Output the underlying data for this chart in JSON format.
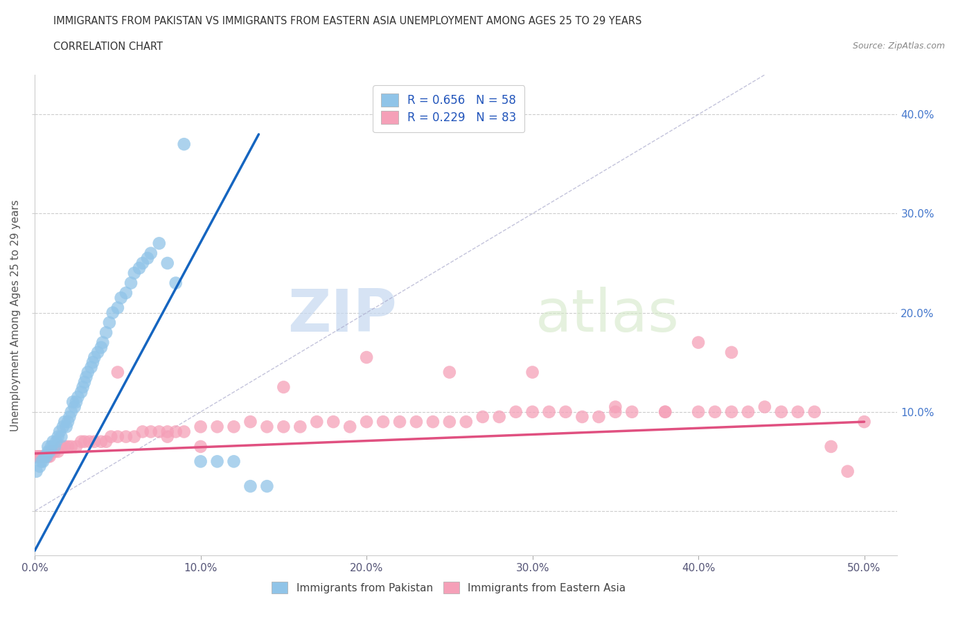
{
  "title_line1": "IMMIGRANTS FROM PAKISTAN VS IMMIGRANTS FROM EASTERN ASIA UNEMPLOYMENT AMONG AGES 25 TO 29 YEARS",
  "title_line2": "CORRELATION CHART",
  "source": "Source: ZipAtlas.com",
  "ylabel": "Unemployment Among Ages 25 to 29 years",
  "xlim": [
    0.0,
    0.52
  ],
  "ylim": [
    -0.045,
    0.44
  ],
  "xticks": [
    0.0,
    0.1,
    0.2,
    0.3,
    0.4,
    0.5
  ],
  "xticklabels": [
    "0.0%",
    "10.0%",
    "20.0%",
    "30.0%",
    "40.0%",
    "50.0%"
  ],
  "yticks": [
    0.0,
    0.1,
    0.2,
    0.3,
    0.4
  ],
  "yticklabels_right": [
    "",
    "10.0%",
    "20.0%",
    "30.0%",
    "40.0%"
  ],
  "pakistan_color": "#90c4e8",
  "eastern_asia_color": "#f5a0b8",
  "pakistan_line_color": "#1565c0",
  "eastern_asia_line_color": "#e05080",
  "R_pakistan": 0.656,
  "N_pakistan": 58,
  "R_eastern_asia": 0.229,
  "N_eastern_asia": 83,
  "legend_label_pakistan": "Immigrants from Pakistan",
  "legend_label_eastern_asia": "Immigrants from Eastern Asia",
  "watermark_zip": "ZIP",
  "watermark_atlas": "atlas",
  "pakistan_x": [
    0.001,
    0.003,
    0.004,
    0.005,
    0.006,
    0.007,
    0.008,
    0.008,
    0.009,
    0.01,
    0.011,
    0.012,
    0.013,
    0.014,
    0.015,
    0.016,
    0.017,
    0.018,
    0.019,
    0.02,
    0.021,
    0.022,
    0.023,
    0.024,
    0.025,
    0.026,
    0.028,
    0.029,
    0.03,
    0.031,
    0.032,
    0.034,
    0.035,
    0.036,
    0.038,
    0.04,
    0.041,
    0.043,
    0.045,
    0.047,
    0.05,
    0.052,
    0.055,
    0.058,
    0.06,
    0.063,
    0.065,
    0.068,
    0.07,
    0.075,
    0.08,
    0.085,
    0.09,
    0.1,
    0.11,
    0.12,
    0.13,
    0.14
  ],
  "pakistan_y": [
    0.04,
    0.045,
    0.05,
    0.05,
    0.055,
    0.055,
    0.06,
    0.065,
    0.06,
    0.065,
    0.07,
    0.065,
    0.07,
    0.075,
    0.08,
    0.075,
    0.085,
    0.09,
    0.085,
    0.09,
    0.095,
    0.1,
    0.11,
    0.105,
    0.11,
    0.115,
    0.12,
    0.125,
    0.13,
    0.135,
    0.14,
    0.145,
    0.15,
    0.155,
    0.16,
    0.165,
    0.17,
    0.18,
    0.19,
    0.2,
    0.205,
    0.215,
    0.22,
    0.23,
    0.24,
    0.245,
    0.25,
    0.255,
    0.26,
    0.27,
    0.25,
    0.23,
    0.37,
    0.05,
    0.05,
    0.05,
    0.025,
    0.025
  ],
  "eastern_asia_x": [
    0.001,
    0.002,
    0.003,
    0.004,
    0.005,
    0.006,
    0.007,
    0.008,
    0.009,
    0.01,
    0.012,
    0.014,
    0.016,
    0.018,
    0.02,
    0.022,
    0.025,
    0.028,
    0.03,
    0.033,
    0.036,
    0.04,
    0.043,
    0.046,
    0.05,
    0.055,
    0.06,
    0.065,
    0.07,
    0.075,
    0.08,
    0.085,
    0.09,
    0.1,
    0.11,
    0.12,
    0.13,
    0.14,
    0.15,
    0.16,
    0.17,
    0.18,
    0.19,
    0.2,
    0.21,
    0.22,
    0.23,
    0.24,
    0.25,
    0.26,
    0.27,
    0.28,
    0.29,
    0.3,
    0.31,
    0.32,
    0.33,
    0.34,
    0.35,
    0.36,
    0.38,
    0.4,
    0.41,
    0.42,
    0.43,
    0.44,
    0.45,
    0.46,
    0.47,
    0.48,
    0.49,
    0.5,
    0.05,
    0.08,
    0.1,
    0.15,
    0.2,
    0.25,
    0.3,
    0.35,
    0.4,
    0.38,
    0.42
  ],
  "eastern_asia_y": [
    0.055,
    0.055,
    0.055,
    0.055,
    0.055,
    0.055,
    0.055,
    0.055,
    0.055,
    0.06,
    0.06,
    0.06,
    0.065,
    0.065,
    0.065,
    0.065,
    0.065,
    0.07,
    0.07,
    0.07,
    0.07,
    0.07,
    0.07,
    0.075,
    0.075,
    0.075,
    0.075,
    0.08,
    0.08,
    0.08,
    0.08,
    0.08,
    0.08,
    0.085,
    0.085,
    0.085,
    0.09,
    0.085,
    0.085,
    0.085,
    0.09,
    0.09,
    0.085,
    0.09,
    0.09,
    0.09,
    0.09,
    0.09,
    0.09,
    0.09,
    0.095,
    0.095,
    0.1,
    0.1,
    0.1,
    0.1,
    0.095,
    0.095,
    0.1,
    0.1,
    0.1,
    0.1,
    0.1,
    0.1,
    0.1,
    0.105,
    0.1,
    0.1,
    0.1,
    0.065,
    0.04,
    0.09,
    0.14,
    0.075,
    0.065,
    0.125,
    0.155,
    0.14,
    0.14,
    0.105,
    0.17,
    0.1,
    0.16
  ],
  "pak_line_x": [
    0.0,
    0.135
  ],
  "pak_line_y": [
    -0.04,
    0.38
  ],
  "ea_line_x": [
    0.0,
    0.5
  ],
  "ea_line_y": [
    0.058,
    0.09
  ],
  "ref_line_x": [
    0.0,
    0.44
  ],
  "ref_line_y": [
    0.0,
    0.44
  ]
}
